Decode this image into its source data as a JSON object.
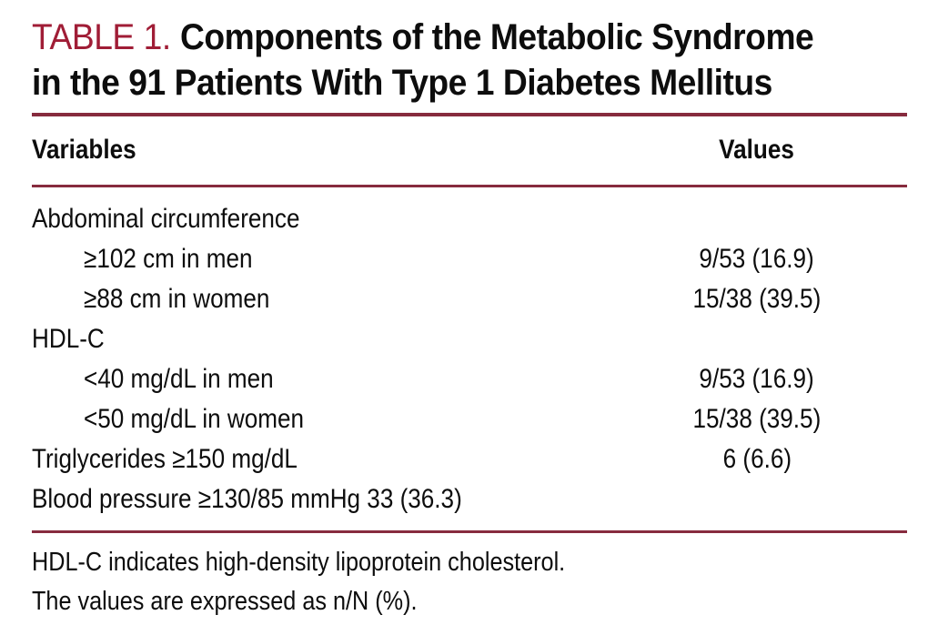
{
  "title": {
    "prefix": "TABLE 1.",
    "line1": "Components of the Metabolic Syndrome",
    "line2": "in the 91 Patients With Type 1 Diabetes Mellitus"
  },
  "colors": {
    "accent_red_text": "#a01d36",
    "rule_red": "#872b3e",
    "body_text": "#0d0d0d",
    "background": "#ffffff"
  },
  "table": {
    "columns": [
      "Variables",
      "Values"
    ],
    "rows": [
      {
        "label": "Abdominal circumference",
        "value": "",
        "indent": false
      },
      {
        "label": "≥102 cm in men",
        "value": "9/53 (16.9)",
        "indent": true
      },
      {
        "label": "≥88 cm in women",
        "value": "15/38 (39.5)",
        "indent": true
      },
      {
        "label": "HDL-C",
        "value": "",
        "indent": false
      },
      {
        "label": "<40 mg/dL in men",
        "value": "9/53 (16.9)",
        "indent": true
      },
      {
        "label": "<50 mg/dL in women",
        "value": "15/38 (39.5)",
        "indent": true
      },
      {
        "label": "Triglycerides ≥150 mg/dL",
        "value": "6 (6.6)",
        "indent": false
      },
      {
        "label": "Blood pressure ≥130/85 mmHg 33 (36.3)",
        "value": "",
        "indent": false
      }
    ]
  },
  "footnotes": [
    "HDL-C indicates high-density lipoprotein cholesterol.",
    "The values are expressed as n/N (%)."
  ]
}
